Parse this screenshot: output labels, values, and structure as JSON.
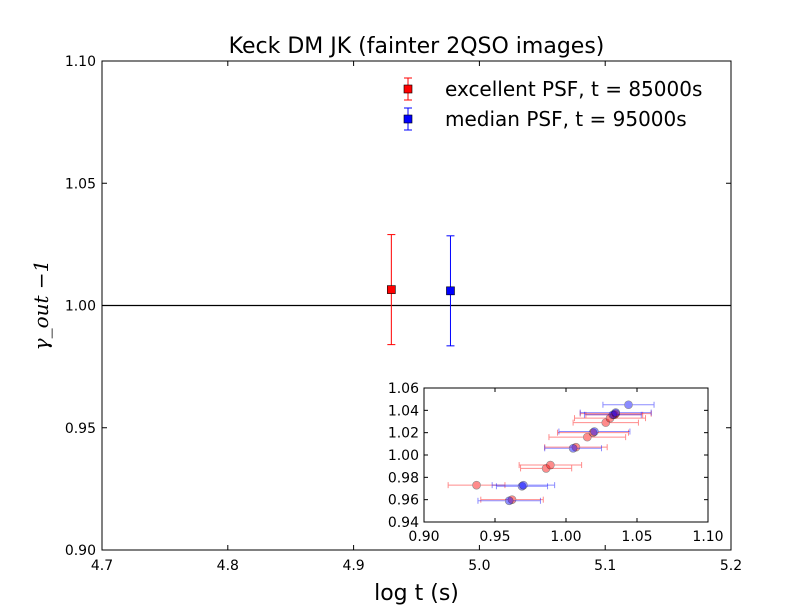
{
  "chart_data": [
    {
      "type": "scatter",
      "title": "Keck DM JK (fainter 2QSO images)",
      "xlabel": "log t (s)",
      "ylabel": "γ_out −1",
      "xlim": [
        4.7,
        5.2
      ],
      "ylim": [
        0.9,
        1.1
      ],
      "x_ticks": [
        "4.7",
        "4.8",
        "4.9",
        "5.0",
        "5.1",
        "5.2"
      ],
      "y_ticks": [
        "0.90",
        "0.95",
        "1.00",
        "1.05",
        "1.10"
      ],
      "reference_line_y": 1.0,
      "legend_position": "top-right",
      "series": [
        {
          "name": "excellent PSF, t = 85000s",
          "color": "#ff0000",
          "marker": "square",
          "points": [
            {
              "x": 4.93,
              "y": 1.0065,
              "yerr": 0.0225
            }
          ]
        },
        {
          "name": "median PSF, t = 95000s",
          "color": "#0000ff",
          "marker": "square",
          "points": [
            {
              "x": 4.977,
              "y": 1.006,
              "yerr": 0.0225
            }
          ]
        }
      ]
    },
    {
      "type": "scatter",
      "xlim": [
        0.9,
        1.1
      ],
      "ylim": [
        0.94,
        1.06
      ],
      "x_ticks": [
        "0.90",
        "0.95",
        "1.00",
        "1.05",
        "1.10"
      ],
      "y_ticks": [
        "0.94",
        "0.96",
        "0.98",
        "1.00",
        "1.02",
        "1.04",
        "1.06"
      ],
      "series": [
        {
          "color": "#ff0000",
          "points": [
            {
              "x": 0.962,
              "y": 0.96,
              "xerr": 0.022
            },
            {
              "x": 0.937,
              "y": 0.973,
              "xerr": 0.02
            },
            {
              "x": 0.986,
              "y": 0.988,
              "xerr": 0.018
            },
            {
              "x": 0.989,
              "y": 0.991,
              "xerr": 0.022
            },
            {
              "x": 1.007,
              "y": 1.007,
              "xerr": 0.022
            },
            {
              "x": 1.015,
              "y": 1.016,
              "xerr": 0.027
            },
            {
              "x": 1.019,
              "y": 1.02,
              "xerr": 0.025
            },
            {
              "x": 1.028,
              "y": 1.029,
              "xerr": 0.023
            },
            {
              "x": 1.031,
              "y": 1.033,
              "xerr": 0.025
            },
            {
              "x": 1.034,
              "y": 1.036,
              "xerr": 0.02
            },
            {
              "x": 1.035,
              "y": 1.037,
              "xerr": 0.025
            }
          ]
        },
        {
          "color": "#0000ff",
          "points": [
            {
              "x": 0.96,
              "y": 0.959,
              "xerr": 0.022
            },
            {
              "x": 0.969,
              "y": 0.972,
              "xerr": 0.018
            },
            {
              "x": 0.97,
              "y": 0.973,
              "xerr": 0.022
            },
            {
              "x": 1.005,
              "y": 1.006,
              "xerr": 0.02
            },
            {
              "x": 1.02,
              "y": 1.021,
              "xerr": 0.025
            },
            {
              "x": 1.033,
              "y": 1.036,
              "xerr": 0.02
            },
            {
              "x": 1.035,
              "y": 1.038,
              "xerr": 0.025
            },
            {
              "x": 1.044,
              "y": 1.045,
              "xerr": 0.018
            }
          ]
        }
      ]
    }
  ]
}
